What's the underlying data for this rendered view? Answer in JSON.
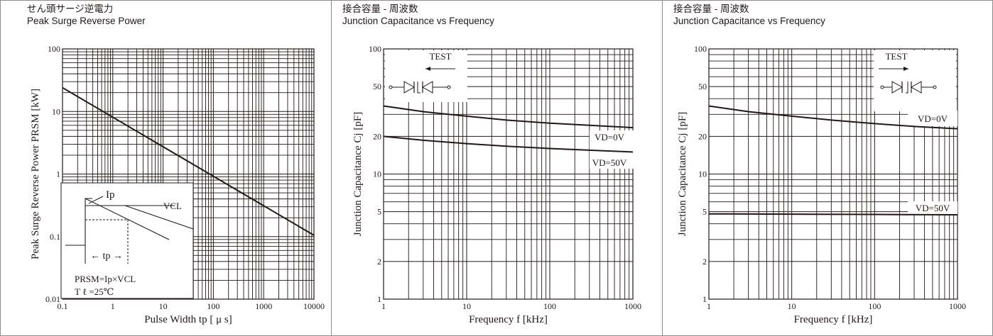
{
  "chart_data": [
    {
      "type": "line",
      "title_ja": "せん頭サージ逆電力",
      "title": "Peak Surge Reverse Power",
      "xlabel": "Pulse Width tp [ μ s]",
      "ylabel": "Peak Surge Reverse Power PRSM [kW]",
      "xscale": "log",
      "yscale": "log",
      "xlim": [
        0.1,
        10000
      ],
      "ylim": [
        0.01,
        100
      ],
      "grid": true,
      "xticks": [
        "0.1",
        "1",
        "10",
        "100",
        "1000",
        "10000"
      ],
      "yticks": [
        "0.01",
        "0.1",
        "1",
        "10",
        "100"
      ],
      "series": [
        {
          "name": "",
          "x": [
            0.1,
            10000
          ],
          "y": [
            24,
            0.105
          ]
        }
      ],
      "inset": {
        "ip_label": "Ip",
        "vcl_label": "VCL",
        "tp_label": "← tp →",
        "formula": "PRSM=Ip×VCL",
        "temp": "T ℓ =25℃"
      }
    },
    {
      "type": "line",
      "title_ja": "接合容量 - 周波数",
      "title": "Junction Capacitance vs Frequency",
      "xlabel": "Frequency f [kHz]",
      "ylabel": "Junction Capacitance Cj [pF]",
      "xscale": "log",
      "yscale": "log",
      "xlim": [
        1,
        1000
      ],
      "ylim": [
        1,
        100
      ],
      "grid": true,
      "xticks": [
        "1",
        "10",
        "100",
        "1000"
      ],
      "yticks": [
        "1",
        "2",
        "5",
        "10",
        "20",
        "50",
        "100"
      ],
      "series": [
        {
          "name": "VD=0V",
          "x": [
            1,
            3,
            10,
            30,
            100,
            300,
            1000
          ],
          "y": [
            35,
            31.5,
            29,
            27,
            25.5,
            24.5,
            23.5
          ]
        },
        {
          "name": "VD=50V",
          "x": [
            1,
            3,
            10,
            30,
            100,
            300,
            1000
          ],
          "y": [
            20,
            18.6,
            17.5,
            16.7,
            16,
            15.5,
            15
          ]
        }
      ],
      "test_label": "TEST"
    },
    {
      "type": "line",
      "title_ja": "接合容量 - 周波数",
      "title": "Junction Capacitance vs Frequency",
      "xlabel": "Frequency f [kHz]",
      "ylabel": "Junction Capacitance Cj [pF]",
      "xscale": "log",
      "yscale": "log",
      "xlim": [
        1,
        1000
      ],
      "ylim": [
        1,
        100
      ],
      "grid": true,
      "xticks": [
        "1",
        "10",
        "100",
        "1000"
      ],
      "yticks": [
        "1",
        "2",
        "5",
        "10",
        "20",
        "50",
        "100"
      ],
      "series": [
        {
          "name": "VD=0V",
          "x": [
            1,
            3,
            10,
            30,
            100,
            300,
            1000
          ],
          "y": [
            35,
            31.5,
            29,
            27,
            25.3,
            24,
            23
          ]
        },
        {
          "name": "VD=50V",
          "x": [
            1,
            10,
            100,
            1000
          ],
          "y": [
            4.8,
            4.78,
            4.75,
            4.72
          ]
        }
      ],
      "test_label": "TEST"
    }
  ]
}
